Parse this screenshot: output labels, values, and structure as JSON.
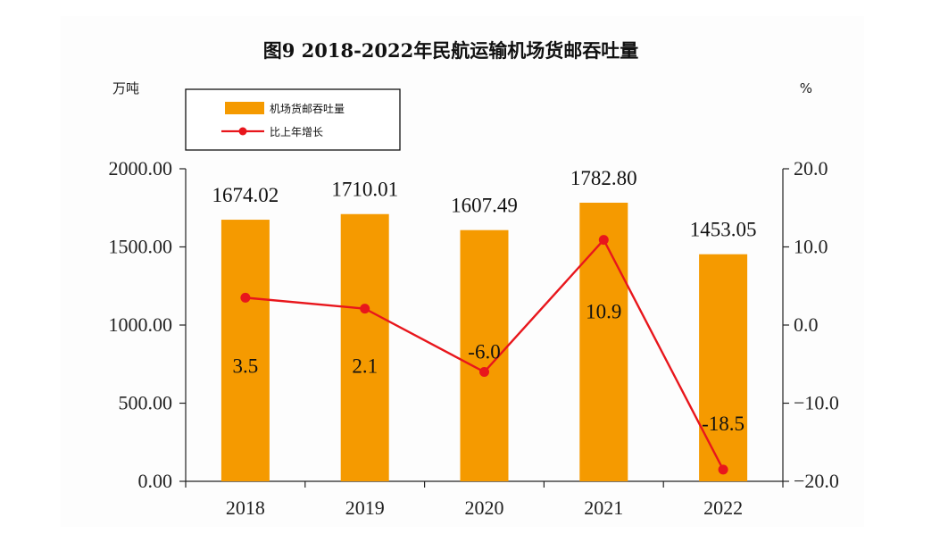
{
  "chart_data": {
    "type": "bar",
    "title": "图9 2018-2022年民航运输机场货邮吞吐量",
    "categories": [
      "2018",
      "2019",
      "2020",
      "2021",
      "2022"
    ],
    "y_left_unit": "万吨",
    "y_right_unit": "%",
    "y_left_ticks": [
      "2000.00",
      "1500.00",
      "1000.00",
      "500.00",
      "0.00"
    ],
    "y_right_ticks": [
      "20.0",
      "10.0",
      "0.0",
      "−10.0",
      "−20.0"
    ],
    "ylim_left": [
      0,
      2000
    ],
    "ylim_right": [
      -20,
      20
    ],
    "grid": false,
    "legend_position": "top-left",
    "series": [
      {
        "name": "机场货邮吞吐量",
        "type": "bar",
        "axis": "left",
        "color": "#F59A00",
        "values": [
          1674.02,
          1710.01,
          1607.49,
          1782.8,
          1453.05
        ],
        "labels": [
          "1674.02",
          "1710.01",
          "1607.49",
          "1782.80",
          "1453.05"
        ]
      },
      {
        "name": "比上年增长",
        "type": "line",
        "axis": "right",
        "color": "#E8161C",
        "values": [
          3.5,
          2.1,
          -6.0,
          10.9,
          -18.5
        ],
        "labels": [
          "3.5",
          "2.1",
          "-6.0",
          "10.9",
          "-18.5"
        ]
      }
    ]
  }
}
